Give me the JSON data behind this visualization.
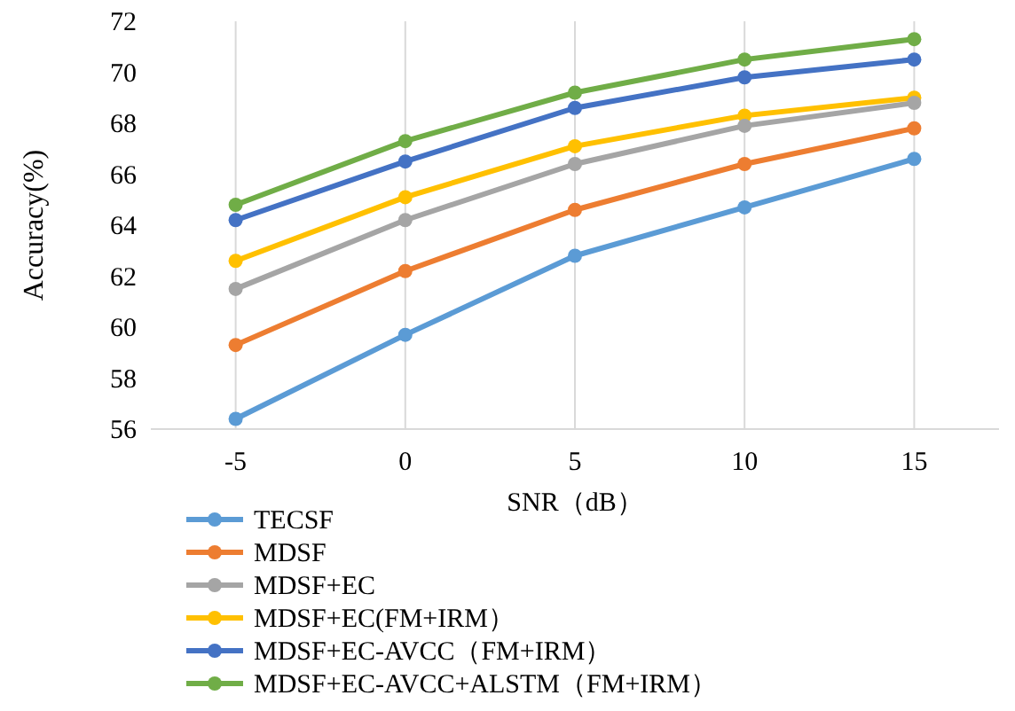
{
  "chart_data": {
    "type": "line",
    "xlabel": "SNR（dB）",
    "ylabel": "Accuracy(%)",
    "categories": [
      "-5",
      "0",
      "5",
      "10",
      "15"
    ],
    "ylim": [
      56,
      72
    ],
    "yticks": [
      56,
      58,
      60,
      62,
      64,
      66,
      68,
      70,
      72
    ],
    "grid": "x",
    "legend": "bottom",
    "marker": "circle",
    "line_style": "solid",
    "series": [
      {
        "name": "TECSF",
        "color": "#5b9bd5",
        "values": [
          56.4,
          59.7,
          62.8,
          64.7,
          66.6
        ]
      },
      {
        "name": "MDSF",
        "color": "#ed7d31",
        "values": [
          59.3,
          62.2,
          64.6,
          66.4,
          67.8
        ]
      },
      {
        "name": "MDSF+EC",
        "color": "#a5a5a5",
        "values": [
          61.5,
          64.2,
          66.4,
          67.9,
          68.8
        ]
      },
      {
        "name": "MDSF+EC(FM+IRM）",
        "color": "#ffc000",
        "values": [
          62.6,
          65.1,
          67.1,
          68.3,
          69.0
        ]
      },
      {
        "name": "MDSF+EC-AVCC（FM+IRM）",
        "color": "#4472c4",
        "values": [
          64.2,
          66.5,
          68.6,
          69.8,
          70.5
        ]
      },
      {
        "name": "MDSF+EC-AVCC+ALSTM（FM+IRM）",
        "color": "#70ad47",
        "values": [
          64.8,
          67.3,
          69.2,
          70.5,
          71.3
        ]
      }
    ]
  }
}
